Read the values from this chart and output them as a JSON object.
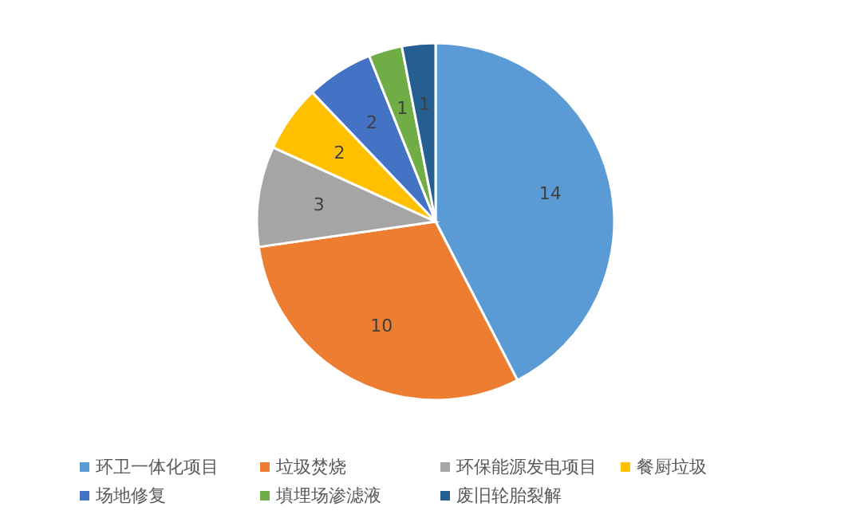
{
  "chart_data": {
    "type": "pie",
    "categories": [
      "环卫一体化项目",
      "垃圾焚烧",
      "环保能源发电项目",
      "餐厨垃圾",
      "场地修复",
      "填埋场渗滤液",
      "废旧轮胎裂解"
    ],
    "values": [
      14,
      10,
      3,
      2,
      2,
      1,
      1
    ],
    "colors": [
      "#5b9bd5",
      "#ed7d31",
      "#a5a5a5",
      "#ffc000",
      "#4472c4",
      "#70ad47",
      "#255e91"
    ],
    "data_labels": true,
    "legend": "bottom"
  }
}
